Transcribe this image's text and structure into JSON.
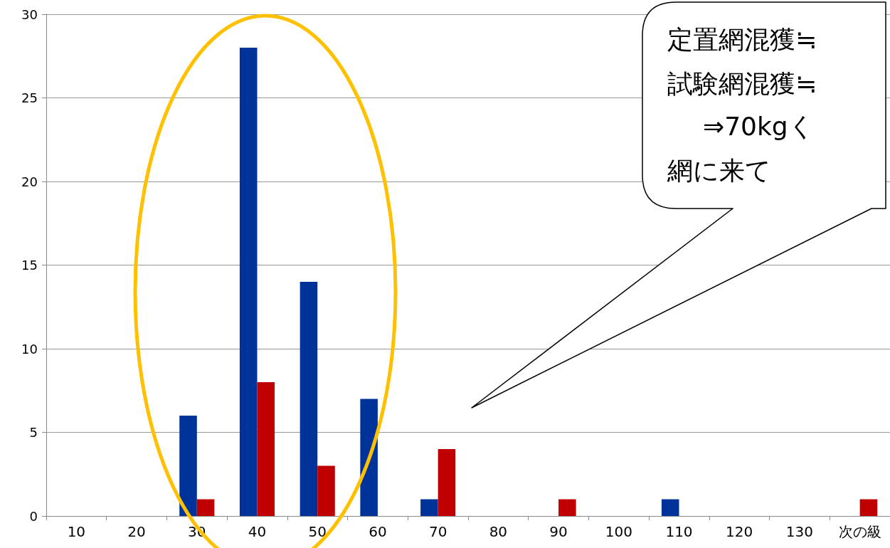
{
  "chart_data": {
    "type": "bar",
    "categories": [
      "10",
      "20",
      "30",
      "40",
      "50",
      "60",
      "70",
      "80",
      "90",
      "100",
      "110",
      "120",
      "130",
      "次の級"
    ],
    "series": [
      {
        "color": "#003399",
        "values": [
          0,
          0,
          6,
          28,
          14,
          7,
          1,
          0,
          0,
          0,
          1,
          0,
          0,
          0
        ]
      },
      {
        "color": "#c00000",
        "values": [
          0,
          0,
          1,
          8,
          3,
          0,
          4,
          0,
          1,
          0,
          0,
          0,
          0,
          1
        ]
      }
    ],
    "ylim": [
      0,
      30
    ],
    "yticks": [
      0,
      5,
      10,
      15,
      20,
      25,
      30
    ],
    "grid": "y",
    "legend": false,
    "annotations": [
      "定置網混獲≒",
      "試験網混獲≒",
      "⇒70kgく",
      "網に来て"
    ]
  }
}
